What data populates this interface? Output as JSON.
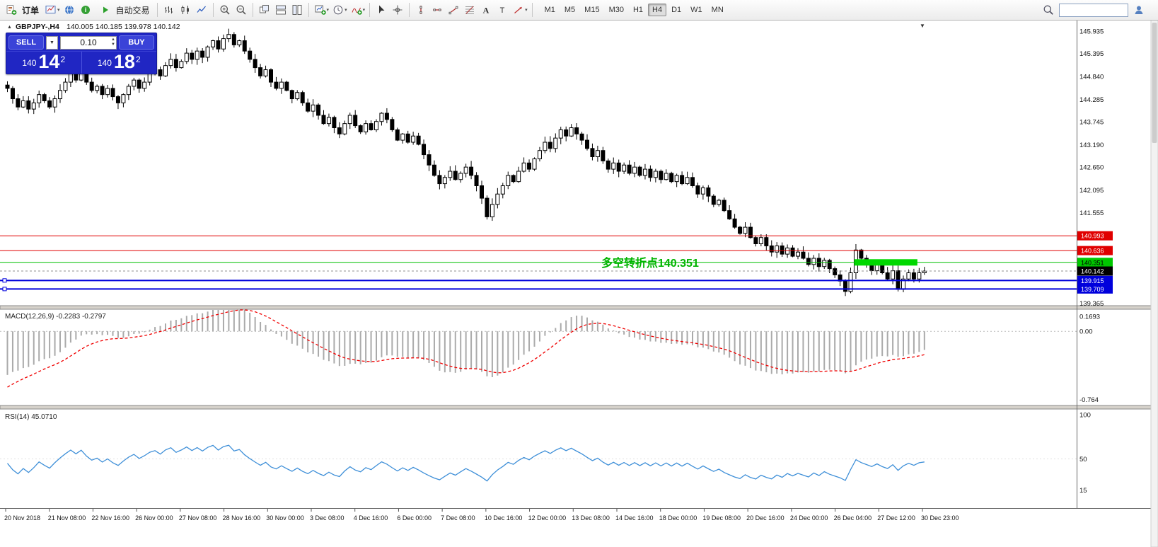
{
  "toolbar": {
    "order_label": "订单",
    "autotrade_label": "自动交易",
    "timeframes": [
      "M1",
      "M5",
      "M15",
      "M30",
      "H1",
      "H4",
      "D1",
      "W1",
      "MN"
    ],
    "active_timeframe": "H4",
    "search_value": "",
    "icons": {
      "order-icon": "order ticket with green plus",
      "charts-icon": "chart window",
      "profiles-icon": "blue globe",
      "help-icon": "green info circle",
      "play-icon": "green play triangle",
      "bars-chart-icon": "ohlc bars",
      "candlestick-chart-icon": "two candles",
      "line-chart-icon": "zigzag line",
      "zoom-in-icon": "magnifier plus",
      "zoom-out-icon": "magnifier minus",
      "cascade-windows-icon": "overlapping windows",
      "tile-horizontal-icon": "stacked windows",
      "tile-vertical-icon": "side by side windows",
      "new-chart-icon": "chart with green plus",
      "period-icon": "clock",
      "indicators-icon": "curve with green plus",
      "cursor-icon": "pointer arrow",
      "crosshair-icon": "crosshair",
      "vertical-line-icon": "vertical line",
      "horizontal-line-icon": "horizontal line",
      "trendline-icon": "diagonal line",
      "fibonacci-icon": "fibonacci retracement lines",
      "text-icon": "letter A",
      "label-icon": "letter T",
      "shapes-icon": "red arrow",
      "search-icon": "magnifier",
      "account-icon": "person silhouette",
      "chevron-down-icon": "small down caret"
    }
  },
  "chart": {
    "symbol_title": "GBPJPY-,H4",
    "ohlc_text": "140.005 140.185 139.978 140.142",
    "trade_panel": {
      "sell_label": "SELL",
      "buy_label": "BUY",
      "lot_value": "0.10",
      "sell_price_prefix": "140",
      "sell_price_big": "14",
      "sell_price_sup": "2",
      "buy_price_prefix": "140",
      "buy_price_big": "18",
      "buy_price_sup": "2"
    },
    "annotation_text": "多空转折点140.351",
    "y_axis_ticks": [
      "145.935",
      "145.395",
      "144.840",
      "144.285",
      "143.745",
      "143.190",
      "142.650",
      "142.095",
      "141.555",
      "139.365"
    ],
    "price_tags": [
      {
        "text": "140.993",
        "bg": "#e00000",
        "fg": "#ffffff"
      },
      {
        "text": "140.636",
        "bg": "#e00000",
        "fg": "#ffffff"
      },
      {
        "text": "140.351",
        "bg": "#00c800",
        "fg": "#000000"
      },
      {
        "text": "140.142",
        "bg": "#000000",
        "fg": "#ffffff"
      },
      {
        "text": "139.915",
        "bg": "#0000dc",
        "fg": "#ffffff"
      },
      {
        "text": "139.709",
        "bg": "#0000dc",
        "fg": "#ffffff"
      }
    ]
  },
  "macd_panel": {
    "label": "MACD(12,26,9) -0.2283 -0.2797",
    "ticks": [
      "0.1693",
      "0.00",
      "-0.764"
    ]
  },
  "rsi_panel": {
    "label": "RSI(14) 45.0710",
    "ticks": [
      "100",
      "50",
      "15"
    ]
  },
  "time_axis": [
    "20 Nov 2018",
    "21 Nov 08:00",
    "22 Nov 16:00",
    "26 Nov 00:00",
    "27 Nov 08:00",
    "28 Nov 16:00",
    "30 Nov 00:00",
    "3 Dec 08:00",
    "4 Dec 16:00",
    "6 Dec 00:00",
    "7 Dec 08:00",
    "10 Dec 16:00",
    "12 Dec 00:00",
    "13 Dec 08:00",
    "14 Dec 16:00",
    "18 Dec 00:00",
    "19 Dec 08:00",
    "20 Dec 16:00",
    "24 Dec 00:00",
    "26 Dec 04:00",
    "27 Dec 12:00",
    "30 Dec 23:00"
  ],
  "chart_data": {
    "type": "candlestick",
    "symbol": "GBPJPY",
    "period": "H4",
    "last_ohlc": {
      "open": 140.005,
      "high": 140.185,
      "low": 139.978,
      "close": 140.142
    },
    "visible_price_range": [
      139.365,
      145.935
    ],
    "closes": [
      144.55,
      144.3,
      144.1,
      144.25,
      144.05,
      144.2,
      144.4,
      144.25,
      144.1,
      144.3,
      144.5,
      144.7,
      144.9,
      144.75,
      144.95,
      144.7,
      144.5,
      144.6,
      144.4,
      144.55,
      144.35,
      144.2,
      144.4,
      144.6,
      144.75,
      144.55,
      144.7,
      144.9,
      145.0,
      144.85,
      145.1,
      145.25,
      145.05,
      145.2,
      145.4,
      145.25,
      145.45,
      145.3,
      145.55,
      145.7,
      145.5,
      145.75,
      145.85,
      145.6,
      145.7,
      145.45,
      145.25,
      145.05,
      144.85,
      145.0,
      144.7,
      144.55,
      144.7,
      144.5,
      144.3,
      144.45,
      144.2,
      144.0,
      144.15,
      143.9,
      143.7,
      143.85,
      143.6,
      143.45,
      143.7,
      143.9,
      143.65,
      143.5,
      143.7,
      143.55,
      143.75,
      143.95,
      143.8,
      143.55,
      143.3,
      143.45,
      143.25,
      143.4,
      143.2,
      142.95,
      142.7,
      142.45,
      142.25,
      142.4,
      142.55,
      142.35,
      142.5,
      142.65,
      142.45,
      142.2,
      141.9,
      141.45,
      141.75,
      142.0,
      142.2,
      142.45,
      142.3,
      142.55,
      142.75,
      142.6,
      142.85,
      143.05,
      143.25,
      143.1,
      143.35,
      143.55,
      143.4,
      143.6,
      143.45,
      143.3,
      143.1,
      142.9,
      143.05,
      142.8,
      142.6,
      142.75,
      142.55,
      142.7,
      142.5,
      142.65,
      142.45,
      142.6,
      142.4,
      142.55,
      142.35,
      142.5,
      142.3,
      142.45,
      142.25,
      142.4,
      142.2,
      142.0,
      142.15,
      141.95,
      141.75,
      141.85,
      141.6,
      141.4,
      141.2,
      141.05,
      141.2,
      140.95,
      140.8,
      140.95,
      140.75,
      140.6,
      140.75,
      140.55,
      140.7,
      140.5,
      140.6,
      140.45,
      140.3,
      140.45,
      140.25,
      140.4,
      140.2,
      140.05,
      139.9,
      139.65,
      140.1,
      140.65,
      140.45,
      140.3,
      140.15,
      140.3,
      140.1,
      139.95,
      140.15,
      139.7,
      139.95,
      140.1,
      139.95,
      140.1,
      140.142
    ],
    "levels": [
      {
        "price": 140.993,
        "color": "#e00000",
        "style": "solid",
        "width": 1
      },
      {
        "price": 140.636,
        "color": "#e00000",
        "style": "solid",
        "width": 1
      },
      {
        "price": 140.351,
        "color": "#00c000",
        "style": "solid",
        "width": 1
      },
      {
        "price": 140.142,
        "color": "#909090",
        "style": "dash",
        "width": 1
      },
      {
        "price": 139.915,
        "color": "#0000dc",
        "style": "solid",
        "width": 2
      },
      {
        "price": 139.709,
        "color": "#0000dc",
        "style": "solid",
        "width": 2
      }
    ],
    "highlight_box": {
      "price": 140.351,
      "from_index": 161,
      "to_index": 173,
      "color": "#00d800"
    },
    "annotation": {
      "text": "多空转折点140.351",
      "color": "#00b400",
      "x_index": 113,
      "price": 140.23
    },
    "indicators": {
      "macd": {
        "fast": 12,
        "slow": 26,
        "signal": 9,
        "current_values": [
          -0.2283,
          -0.2797
        ],
        "axis_max": 0.1693,
        "axis_min": -0.764
      },
      "rsi": {
        "period": 14,
        "current_value": 45.071,
        "axis_levels": [
          100,
          50,
          15
        ]
      }
    }
  }
}
